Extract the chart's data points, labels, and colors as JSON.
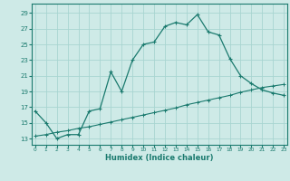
{
  "xlabel": "Humidex (Indice chaleur)",
  "bg_color": "#ceeae7",
  "grid_color": "#a8d5d1",
  "line_color": "#1a7a6e",
  "spine_color": "#1a7a6e",
  "x_ticks": [
    0,
    1,
    2,
    3,
    4,
    5,
    6,
    7,
    8,
    9,
    10,
    11,
    12,
    13,
    14,
    15,
    16,
    17,
    18,
    19,
    20,
    21,
    22,
    23
  ],
  "y_ticks": [
    13,
    15,
    17,
    19,
    21,
    23,
    25,
    27,
    29
  ],
  "xlim": [
    -0.3,
    23.3
  ],
  "ylim": [
    12.2,
    30.2
  ],
  "curve1_x": [
    0,
    1,
    2,
    3,
    4,
    5,
    6,
    7,
    8,
    9,
    10,
    11,
    12,
    13,
    14,
    15,
    16,
    17,
    18,
    19,
    20,
    21,
    22,
    23
  ],
  "curve1_y": [
    16.5,
    15.0,
    13.0,
    13.5,
    13.5,
    16.5,
    16.8,
    21.5,
    19.0,
    23.0,
    25.0,
    25.3,
    27.3,
    27.8,
    27.5,
    28.8,
    26.6,
    26.2,
    23.2,
    21.0,
    20.0,
    19.2,
    18.8,
    18.5
  ],
  "curve2_x": [
    0,
    1,
    2,
    3,
    4,
    5,
    6,
    7,
    8,
    9,
    10,
    11,
    12,
    13,
    14,
    15,
    16,
    17,
    18,
    19,
    20,
    21,
    22,
    23
  ],
  "curve2_y": [
    13.3,
    13.5,
    13.8,
    14.0,
    14.3,
    14.5,
    14.8,
    15.1,
    15.4,
    15.7,
    16.0,
    16.3,
    16.6,
    16.9,
    17.3,
    17.6,
    17.9,
    18.2,
    18.5,
    18.9,
    19.2,
    19.5,
    19.7,
    19.9
  ]
}
